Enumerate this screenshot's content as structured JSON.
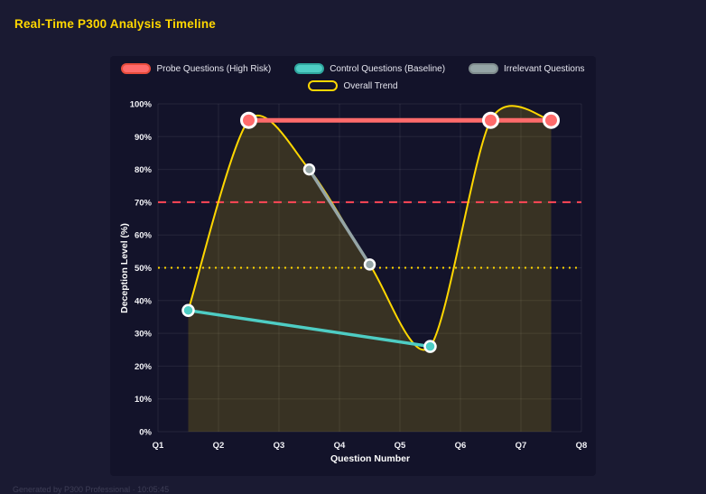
{
  "page": {
    "title": "Real-Time P300 Analysis Timeline",
    "footer": "Generated by P300 Professional · 10:05:45"
  },
  "colors": {
    "background": "#1a1a32",
    "panel": "#13132a",
    "title": "#ffd700",
    "text": "#e6e6ef",
    "tick": "#f2f2f6",
    "grid": "rgba(255,255,255,0.08)",
    "footer": "#3e3e56",
    "marker_ring": "#ffffff"
  },
  "chart_data": {
    "type": "line",
    "title": "Real-Time P300 Analysis Timeline",
    "xlabel": "Question Number",
    "ylabel": "Deception Level (%)",
    "x_ticks": [
      "Q1",
      "Q2",
      "Q3",
      "Q4",
      "Q5",
      "Q6",
      "Q7",
      "Q8"
    ],
    "y_ticks": [
      "0%",
      "10%",
      "20%",
      "30%",
      "40%",
      "50%",
      "60%",
      "70%",
      "80%",
      "90%",
      "100%"
    ],
    "ylim": [
      0,
      100
    ],
    "grid": true,
    "legend_position": "top",
    "thresholds": [
      {
        "name": "high-risk-threshold-line",
        "value": 70,
        "color": "#ff4757",
        "dash": "9 7"
      },
      {
        "name": "baseline-threshold-line",
        "value": 50,
        "color": "#ffd700",
        "dash": "2 5"
      }
    ],
    "series": [
      {
        "id": "trend",
        "type": "trend",
        "name": "Overall Trend",
        "legend_row": 2,
        "legend_index": 3,
        "color": "#ffd700",
        "border": "#ffd700",
        "fill": "rgba(255,215,0,0.16)",
        "width": 2,
        "points": [
          {
            "x": 0.5,
            "y": 37
          },
          {
            "x": 1.5,
            "y": 95
          },
          {
            "x": 2.5,
            "y": 80
          },
          {
            "x": 3.5,
            "y": 51
          },
          {
            "x": 4.5,
            "y": 26
          },
          {
            "x": 5.5,
            "y": 95
          },
          {
            "x": 6.5,
            "y": 95
          }
        ]
      },
      {
        "id": "irrelevant",
        "type": "line",
        "name": "Irrelevant Questions",
        "legend_row": 1,
        "legend_index": 2,
        "color": "#95a5a6",
        "border": "#7f8c8d",
        "width": 3.5,
        "r": 5.5,
        "points": [
          {
            "x": 2.5,
            "y": 80
          },
          {
            "x": 3.5,
            "y": 51
          }
        ]
      },
      {
        "id": "control",
        "type": "line",
        "name": "Control Questions (Baseline)",
        "legend_row": 1,
        "legend_index": 1,
        "color": "#4ecdc4",
        "border": "#2fa69e",
        "width": 3.5,
        "r": 6,
        "points": [
          {
            "x": 0.5,
            "y": 37
          },
          {
            "x": 4.5,
            "y": 26
          }
        ]
      },
      {
        "id": "probe",
        "type": "line",
        "name": "Probe Questions (High Risk)",
        "legend_row": 1,
        "legend_index": 0,
        "color": "#ff6b6b",
        "border": "#e74c3c",
        "width": 5,
        "r": 8,
        "points": [
          {
            "x": 1.5,
            "y": 95
          },
          {
            "x": 5.5,
            "y": 95
          },
          {
            "x": 6.5,
            "y": 95
          }
        ]
      }
    ]
  }
}
